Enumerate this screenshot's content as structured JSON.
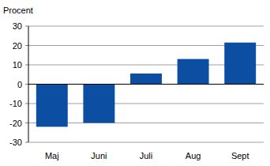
{
  "chart_data": {
    "type": "bar",
    "ylabel": "Procent",
    "categories": [
      "Maj",
      "Juni",
      "Juli",
      "Aug",
      "Sept"
    ],
    "values": [
      -22,
      -20,
      5.5,
      13,
      21.5
    ],
    "color": "#0b4ea2",
    "ylim": [
      -30,
      30
    ],
    "yticks": [
      -30,
      -20,
      -10,
      0,
      10,
      20,
      30
    ],
    "grid": true
  }
}
